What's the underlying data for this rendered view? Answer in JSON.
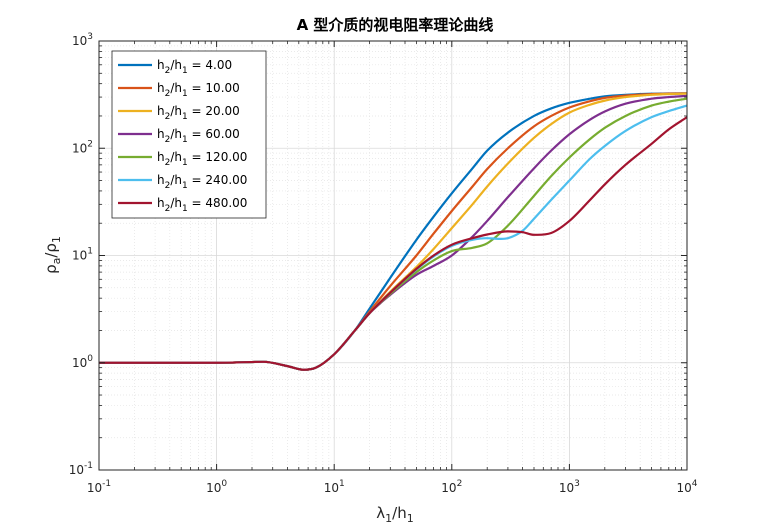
{
  "chart_data": {
    "type": "line",
    "title": "A 型介质的视电阻率理论曲线",
    "xlabel": {
      "base": "λ",
      "sub": "1",
      "mid": "/h",
      "sub2": "1"
    },
    "ylabel": {
      "base": "ρ",
      "sub": "a",
      "mid": "/ρ",
      "sub2": "1"
    },
    "xscale": "log",
    "yscale": "log",
    "xlim": [
      0.1,
      10000
    ],
    "ylim": [
      0.1,
      1000
    ],
    "xticks": [
      {
        "base": "10",
        "exp": "-1",
        "value": 0.1
      },
      {
        "base": "10",
        "exp": "0",
        "value": 1
      },
      {
        "base": "10",
        "exp": "1",
        "value": 10
      },
      {
        "base": "10",
        "exp": "2",
        "value": 100
      },
      {
        "base": "10",
        "exp": "3",
        "value": 1000
      },
      {
        "base": "10",
        "exp": "4",
        "value": 10000
      }
    ],
    "yticks": [
      {
        "base": "10",
        "exp": "-1",
        "value": 0.1
      },
      {
        "base": "10",
        "exp": "0",
        "value": 1
      },
      {
        "base": "10",
        "exp": "1",
        "value": 10
      },
      {
        "base": "10",
        "exp": "2",
        "value": 100
      },
      {
        "base": "10",
        "exp": "3",
        "value": 1000
      }
    ],
    "grid": true,
    "legend_position": "top-left",
    "series": [
      {
        "name": {
          "a": "h",
          "s1": "2",
          "b": "/h",
          "s2": "1",
          "c": " =  4.00"
        },
        "color": "#0072BD",
        "x": [
          0.1,
          1,
          2.5,
          4,
          5.5,
          7,
          10,
          15,
          20,
          30,
          50,
          70,
          100,
          150,
          200,
          300,
          500,
          700,
          1000,
          1500,
          2000,
          3000,
          5000,
          7000,
          10000
        ],
        "y": [
          1,
          1,
          1.02,
          0.93,
          0.86,
          0.9,
          1.2,
          2.0,
          3.2,
          6.2,
          14,
          23,
          38,
          65,
          95,
          140,
          200,
          235,
          265,
          290,
          305,
          315,
          322,
          324,
          325
        ]
      },
      {
        "name": {
          "a": "h",
          "s1": "2",
          "b": "/h",
          "s2": "1",
          "c": " = 10.00"
        },
        "color": "#D95319",
        "x": [
          0.1,
          1,
          2.5,
          4,
          5.5,
          7,
          10,
          15,
          20,
          30,
          50,
          70,
          100,
          150,
          200,
          300,
          500,
          700,
          1000,
          1500,
          2000,
          3000,
          5000,
          7000,
          10000
        ],
        "y": [
          1,
          1,
          1.02,
          0.93,
          0.86,
          0.9,
          1.2,
          2.0,
          3.0,
          5.2,
          10,
          16,
          26,
          44,
          64,
          100,
          160,
          200,
          240,
          275,
          295,
          310,
          320,
          323,
          325
        ]
      },
      {
        "name": {
          "a": "h",
          "s1": "2",
          "b": "/h",
          "s2": "1",
          "c": " = 20.00"
        },
        "color": "#EDB120",
        "x": [
          0.1,
          1,
          2.5,
          4,
          5.5,
          7,
          10,
          15,
          20,
          30,
          50,
          70,
          100,
          150,
          200,
          300,
          500,
          700,
          1000,
          1500,
          2000,
          3000,
          5000,
          7000,
          10000
        ],
        "y": [
          1,
          1,
          1.02,
          0.93,
          0.86,
          0.9,
          1.2,
          2.0,
          2.9,
          4.6,
          7.8,
          11.5,
          18,
          30,
          44,
          72,
          125,
          168,
          215,
          255,
          278,
          300,
          315,
          320,
          323
        ]
      },
      {
        "name": {
          "a": "h",
          "s1": "2",
          "b": "/h",
          "s2": "1",
          "c": " = 60.00"
        },
        "color": "#7E2F8E",
        "x": [
          0.1,
          1,
          2.5,
          4,
          5.5,
          7,
          10,
          15,
          20,
          30,
          50,
          70,
          100,
          150,
          200,
          300,
          500,
          700,
          1000,
          1500,
          2000,
          3000,
          5000,
          7000,
          10000
        ],
        "y": [
          1,
          1,
          1.02,
          0.93,
          0.86,
          0.9,
          1.2,
          2.0,
          2.9,
          4.3,
          6.6,
          8.0,
          10,
          15,
          21,
          35,
          65,
          95,
          135,
          185,
          220,
          260,
          290,
          300,
          308
        ]
      },
      {
        "name": {
          "a": "h",
          "s1": "2",
          "b": "/h",
          "s2": "1",
          "c": " = 120.00"
        },
        "color": "#77AC30",
        "x": [
          0.1,
          1,
          2.5,
          4,
          5.5,
          7,
          10,
          15,
          20,
          30,
          50,
          70,
          100,
          150,
          200,
          300,
          500,
          700,
          1000,
          1500,
          2000,
          3000,
          5000,
          7000,
          10000
        ],
        "y": [
          1,
          1,
          1.02,
          0.93,
          0.86,
          0.9,
          1.2,
          2.0,
          2.9,
          4.4,
          7.0,
          9.0,
          11,
          11.8,
          13,
          19,
          36,
          55,
          82,
          122,
          155,
          200,
          250,
          272,
          290
        ]
      },
      {
        "name": {
          "a": "h",
          "s1": "2",
          "b": "/h",
          "s2": "1",
          "c": " = 240.00"
        },
        "color": "#4DBEEE",
        "x": [
          0.1,
          1,
          2.5,
          4,
          5.5,
          7,
          10,
          15,
          20,
          30,
          50,
          70,
          100,
          150,
          200,
          250,
          300,
          400,
          500,
          700,
          1000,
          1500,
          2000,
          3000,
          5000,
          7000,
          10000
        ],
        "y": [
          1,
          1,
          1.02,
          0.93,
          0.86,
          0.9,
          1.2,
          2.0,
          2.9,
          4.5,
          7.4,
          9.8,
          12.3,
          14,
          14.5,
          14.3,
          14.5,
          17,
          22,
          33,
          50,
          80,
          105,
          145,
          195,
          222,
          250
        ]
      },
      {
        "name": {
          "a": "h",
          "s1": "2",
          "b": "/h",
          "s2": "1",
          "c": " = 480.00"
        },
        "color": "#A2142F",
        "x": [
          0.1,
          1,
          2.5,
          4,
          5.5,
          7,
          10,
          15,
          20,
          30,
          50,
          70,
          100,
          150,
          200,
          300,
          400,
          500,
          700,
          1000,
          1500,
          2000,
          3000,
          5000,
          7000,
          10000
        ],
        "y": [
          1,
          1,
          1.02,
          0.93,
          0.86,
          0.9,
          1.2,
          2.0,
          2.9,
          4.5,
          7.5,
          10,
          12.6,
          14.5,
          15.7,
          16.8,
          16.5,
          15.6,
          16.2,
          21,
          33,
          46,
          70,
          110,
          150,
          195
        ]
      }
    ]
  }
}
